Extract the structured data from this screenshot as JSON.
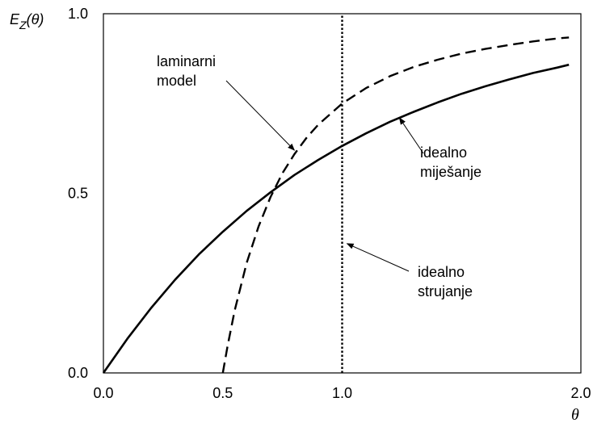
{
  "chart_data": {
    "type": "line",
    "ylabel": "E_Z(θ)",
    "ylabel_main": "E",
    "ylabel_sub": "Z",
    "ylabel_arg": "(θ)",
    "xlabel": "θ",
    "xlim": [
      0,
      2.0
    ],
    "ylim": [
      0,
      1.0
    ],
    "x_ticks": [
      {
        "value": 0.0,
        "label": "0.0"
      },
      {
        "value": 0.5,
        "label": "0.5"
      },
      {
        "value": 1.0,
        "label": "1.0"
      },
      {
        "value": 2.0,
        "label": "2.0"
      }
    ],
    "y_ticks": [
      {
        "value": 0.0,
        "label": "0.0"
      },
      {
        "value": 0.5,
        "label": "0.5"
      },
      {
        "value": 1.0,
        "label": "1.0"
      }
    ],
    "grid": false,
    "series": [
      {
        "style": "solid",
        "x": [
          0,
          0.1,
          0.2,
          0.3,
          0.4,
          0.5,
          0.6,
          0.7,
          0.8,
          0.9,
          1.0,
          1.1,
          1.2,
          1.3,
          1.4,
          1.5,
          1.6,
          1.7,
          1.8,
          1.9,
          1.95
        ],
        "y": [
          0,
          0.095,
          0.181,
          0.259,
          0.33,
          0.393,
          0.451,
          0.503,
          0.551,
          0.593,
          0.632,
          0.667,
          0.699,
          0.727,
          0.753,
          0.777,
          0.798,
          0.817,
          0.835,
          0.85,
          0.858
        ]
      },
      {
        "style": "dashed",
        "x": [
          0.5,
          0.52,
          0.55,
          0.6,
          0.65,
          0.7,
          0.75,
          0.8,
          0.85,
          0.9,
          1.0,
          1.1,
          1.2,
          1.3,
          1.4,
          1.5,
          1.6,
          1.7,
          1.8,
          1.9,
          1.95
        ],
        "y": [
          0,
          0.075,
          0.174,
          0.306,
          0.408,
          0.49,
          0.556,
          0.609,
          0.654,
          0.691,
          0.75,
          0.793,
          0.826,
          0.852,
          0.872,
          0.889,
          0.902,
          0.913,
          0.923,
          0.931,
          0.934
        ]
      },
      {
        "style": "dotted",
        "x": [
          1.0,
          1.0
        ],
        "y": [
          0,
          1.0
        ]
      }
    ],
    "annotations": [
      {
        "lines": [
          "laminarni",
          "model"
        ],
        "target": [
          0.8,
          0.62
        ]
      },
      {
        "lines": [
          "idealno",
          "miješanje"
        ],
        "target": [
          1.24,
          0.71
        ]
      },
      {
        "lines": [
          "idealno",
          "strujanje"
        ],
        "target": [
          1.0,
          0.36
        ]
      }
    ]
  }
}
